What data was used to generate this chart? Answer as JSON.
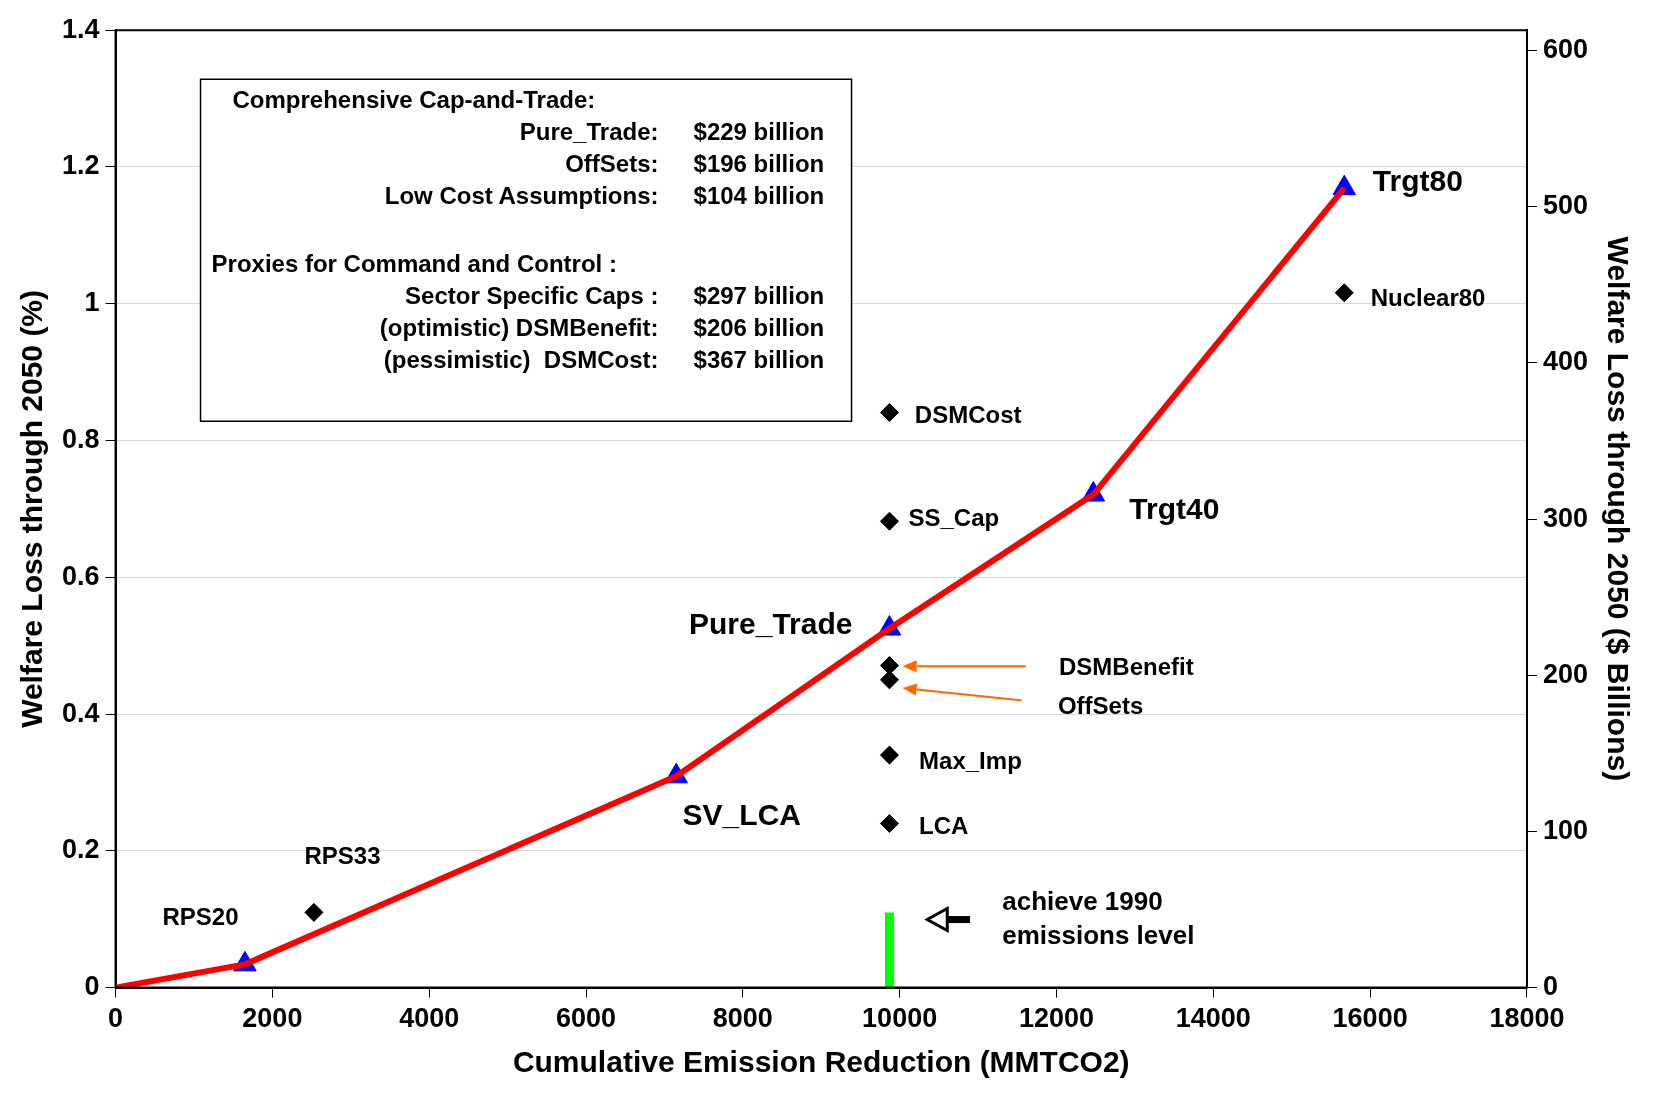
{
  "chart_data": {
    "type": "scatter",
    "xlabel": "Cumulative Emission Reduction (MMTCO2)",
    "ylabel": "Welfare Loss through 2050 (%)",
    "y2label": "Welfare Loss through 2050 ($ Billions)",
    "xlim": [
      0,
      18000
    ],
    "xticks": [
      0,
      2000,
      4000,
      6000,
      8000,
      10000,
      12000,
      14000,
      16000,
      18000
    ],
    "ylim": [
      0,
      1.4
    ],
    "yticks": [
      0,
      0.2,
      0.4,
      0.6,
      0.8,
      1,
      1.2,
      1.4
    ],
    "y2lim": [
      0,
      613
    ],
    "y2ticks": [
      0,
      100,
      200,
      300,
      400,
      500,
      600
    ],
    "grid": "y",
    "legend": false,
    "series": [
      {
        "type": "line",
        "color": "#ff0000",
        "marker": "none",
        "x": [
          0,
          1650,
          7150,
          9870,
          12470,
          15670
        ],
        "values": [
          0,
          0.034,
          0.309,
          0.525,
          0.721,
          1.169
        ]
      },
      {
        "type": "scatter",
        "color": "#0000ff",
        "marker": "triangle",
        "x": [
          1650,
          7150,
          9870,
          12470,
          15670
        ],
        "values": [
          0.034,
          0.309,
          0.525,
          0.721,
          1.169
        ]
      },
      {
        "type": "scatter",
        "color": "#000000",
        "marker": "diamond",
        "x": [
          2530,
          15670,
          9870,
          9870,
          9870,
          9870,
          9870,
          9870
        ],
        "values": [
          0.11,
          1.016,
          0.841,
          0.682,
          0.471,
          0.45,
          0.34,
          0.24
        ]
      },
      {
        "type": "line",
        "color": "#00ff00",
        "marker": "none",
        "x": [
          9870,
          9870
        ],
        "values": [
          0,
          0.11
        ]
      }
    ],
    "annotations": [
      {
        "text": "RPS20",
        "x": 1650,
        "y": 0.034
      },
      {
        "text": "RPS33",
        "x": 2530,
        "y": 0.11
      },
      {
        "text": "SV_LCA",
        "x": 7150,
        "y": 0.309
      },
      {
        "text": "Pure_Trade",
        "x": 9870,
        "y": 0.525
      },
      {
        "text": "Trgt40",
        "x": 12470,
        "y": 0.721
      },
      {
        "text": "Trgt80",
        "x": 15670,
        "y": 1.169
      },
      {
        "text": "Nuclear80",
        "x": 15670,
        "y": 1.016
      },
      {
        "text": "DSMCost",
        "x": 9870,
        "y": 0.841
      },
      {
        "text": "SS_Cap",
        "x": 9870,
        "y": 0.682
      },
      {
        "text": "Max_Imp",
        "x": 9870,
        "y": 0.34
      },
      {
        "text": "LCA",
        "x": 9870,
        "y": 0.24
      },
      "DSMBenefit",
      "OffSets",
      "achieve 1990 emissions level",
      "Comprehensive Cap-and-Trade:",
      "Pure_Trade: $229 billion",
      "OffSets: $196 billion",
      "Low Cost Assumptions: $104 billion",
      "Proxies for Command and Control :",
      "Sector Specific Caps : $297 billion",
      "(optimistic) DSMBenefit: $206 billion",
      "(pessimistic)  DSMCost: $367 billion"
    ]
  }
}
